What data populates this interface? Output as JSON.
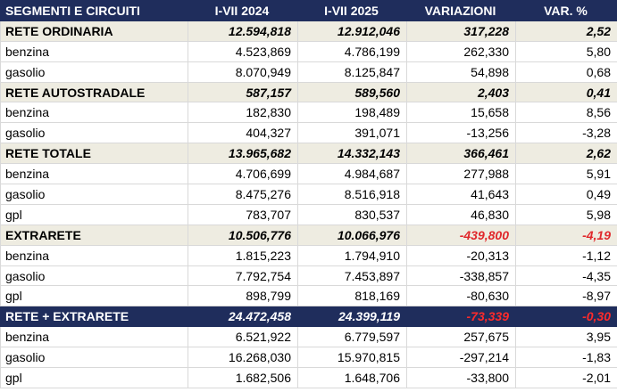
{
  "header": [
    "SEGMENTI E CIRCUITI",
    "I-VII 2024",
    "I-VII 2025",
    "VARIAZIONI",
    "VAR. %"
  ],
  "rows": [
    {
      "type": "group",
      "label": "RETE ORDINARIA",
      "v2024": "12.594,818",
      "v2025": "12.912,046",
      "diff": "317,228",
      "pct": "2,52",
      "neg": false
    },
    {
      "type": "sub",
      "label": "benzina",
      "v2024": "4.523,869",
      "v2025": "4.786,199",
      "diff": "262,330",
      "pct": "5,80",
      "neg": false
    },
    {
      "type": "sub",
      "label": "gasolio",
      "v2024": "8.070,949",
      "v2025": "8.125,847",
      "diff": "54,898",
      "pct": "0,68",
      "neg": false
    },
    {
      "type": "group",
      "label": "RETE AUTOSTRADALE",
      "v2024": "587,157",
      "v2025": "589,560",
      "diff": "2,403",
      "pct": "0,41",
      "neg": false
    },
    {
      "type": "sub",
      "label": "benzina",
      "v2024": "182,830",
      "v2025": "198,489",
      "diff": "15,658",
      "pct": "8,56",
      "neg": false
    },
    {
      "type": "sub",
      "label": "gasolio",
      "v2024": "404,327",
      "v2025": "391,071",
      "diff": "-13,256",
      "pct": "-3,28",
      "neg": true
    },
    {
      "type": "group",
      "label": "RETE TOTALE",
      "v2024": "13.965,682",
      "v2025": "14.332,143",
      "diff": "366,461",
      "pct": "2,62",
      "neg": false
    },
    {
      "type": "sub",
      "label": "benzina",
      "v2024": "4.706,699",
      "v2025": "4.984,687",
      "diff": "277,988",
      "pct": "5,91",
      "neg": false
    },
    {
      "type": "sub",
      "label": "gasolio",
      "v2024": "8.475,276",
      "v2025": "8.516,918",
      "diff": "41,643",
      "pct": "0,49",
      "neg": false
    },
    {
      "type": "sub",
      "label": "gpl",
      "v2024": "783,707",
      "v2025": "830,537",
      "diff": "46,830",
      "pct": "5,98",
      "neg": false
    },
    {
      "type": "group",
      "label": "EXTRARETE",
      "v2024": "10.506,776",
      "v2025": "10.066,976",
      "diff": "-439,800",
      "pct": "-4,19",
      "neg": true
    },
    {
      "type": "sub",
      "label": "benzina",
      "v2024": "1.815,223",
      "v2025": "1.794,910",
      "diff": "-20,313",
      "pct": "-1,12",
      "neg": true
    },
    {
      "type": "sub",
      "label": "gasolio",
      "v2024": "7.792,754",
      "v2025": "7.453,897",
      "diff": "-338,857",
      "pct": "-4,35",
      "neg": true
    },
    {
      "type": "sub",
      "label": "gpl",
      "v2024": "898,799",
      "v2025": "818,169",
      "diff": "-80,630",
      "pct": "-8,97",
      "neg": true
    },
    {
      "type": "total",
      "label": "RETE + EXTRARETE",
      "v2024": "24.472,458",
      "v2025": "24.399,119",
      "diff": "-73,339",
      "pct": "-0,30",
      "neg": true
    },
    {
      "type": "sub",
      "label": "benzina",
      "v2024": "6.521,922",
      "v2025": "6.779,597",
      "diff": "257,675",
      "pct": "3,95",
      "neg": false
    },
    {
      "type": "sub",
      "label": "gasolio",
      "v2024": "16.268,030",
      "v2025": "15.970,815",
      "diff": "-297,214",
      "pct": "-1,83",
      "neg": true
    },
    {
      "type": "sub",
      "label": "gpl",
      "v2024": "1.682,506",
      "v2025": "1.648,706",
      "diff": "-33,800",
      "pct": "-2,01",
      "neg": true
    }
  ]
}
